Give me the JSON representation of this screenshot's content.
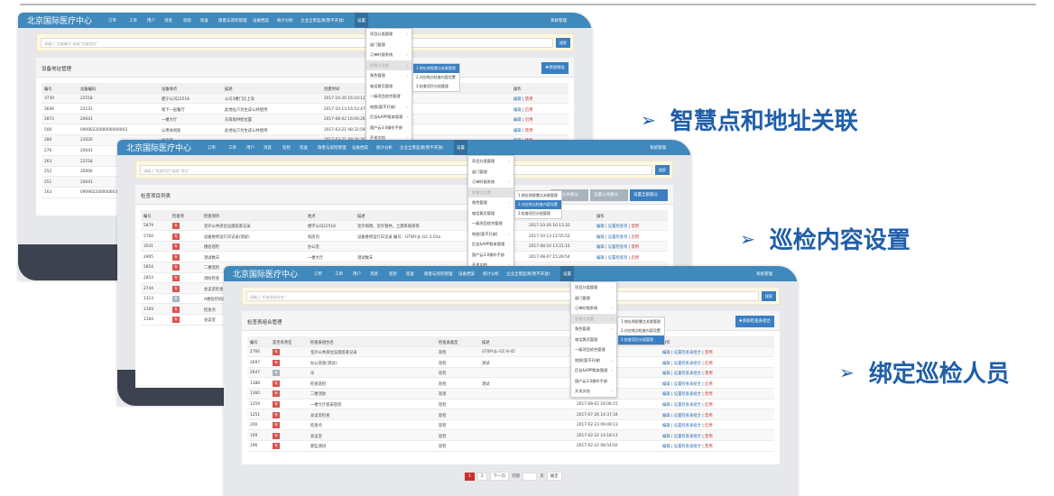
{
  "nav": {
    "brand": "北京国际医疗中心",
    "items": [
      "订单",
      "工单",
      "用户",
      "消息",
      "巡检",
      "巡查",
      "隐患与巡检管理",
      "设备档案",
      "统计分析",
      "企业全景监测(暂不开放)",
      "设置"
    ],
    "user": "系统管理"
  },
  "settings_menu": [
    "项目分类管理",
    "部门管理",
    "订单时限系统",
    "智慧点设置",
    "角色管理",
    "电话黄页管理",
    "一级项目综合管理",
    "地图(暂不开放)",
    "后台&APP版本管理",
    "国产云3.0操作手册",
    "开发文档"
  ],
  "settings_submenu": [
    "1.地址和智慧点关联管理",
    "2.对应地点检查内容设置",
    "3.检查项目分组管理"
  ],
  "shots": [
    {
      "search_placeholder": "请输入\"设备编号\"或者\"设备地点\"",
      "search_button": "搜索",
      "panel_title": "设备地址管理",
      "buttons": [
        "✚添加地址"
      ],
      "active_sub": 0,
      "columns": [
        "编号",
        "设备编码",
        "设备地点",
        "描述",
        "创建时间",
        "操作"
      ],
      "rows": [
        [
          "3730",
          "22518",
          "健宁公司22518",
          "公司3楼门诊上海",
          "2017-10-26 16:10:12",
          "编辑|禁用"
        ],
        [
          "3646",
          "23131",
          "地下一层餐厅",
          "此地址只为生成公共使用",
          "2017-10-13 16:53:47",
          "编辑|启用"
        ],
        [
          "2872",
          "20041",
          "一楼大厅",
          "东南角供给位置",
          "2017-08-02 16:00:26",
          "编辑|启用"
        ],
        [
          "500",
          "0909022000000000003",
          "公用休闲处",
          "此地址只为生成公共使用",
          "2017-03-21 08:31:59",
          "编辑|禁用"
        ],
        [
          "280",
          "23026",
          "会议室",
          "",
          "2017-03-21 08:26:30",
          "编辑|禁用"
        ],
        [
          "276",
          "20041",
          "",
          "",
          "",
          ""
        ],
        [
          "263",
          "22518",
          "",
          "",
          "",
          ""
        ],
        [
          "252",
          "20060",
          "",
          "",
          "",
          ""
        ],
        [
          "251",
          "20041",
          "",
          "",
          "",
          ""
        ],
        [
          "163",
          "0909022000000039",
          "",
          "",
          "",
          ""
        ]
      ]
    },
    {
      "search_placeholder": "请输入\"检查项目\"或者\"地点\"",
      "search_button": "搜索",
      "panel_title": "检查项目列表",
      "buttons": [
        "设置公共部分",
        "设置公共部分",
        "设置全部部分"
      ],
      "active_sub": 1,
      "columns": [
        "编号",
        "检查项",
        "检查项目",
        "地点",
        "描述",
        "创建时间",
        "操作"
      ],
      "rows": [
        [
          "5879",
          "red",
          "室外公共部位设施巡查记录",
          "楼宇公司22518",
          "室外照明，室外管井，土建系统部等",
          "2017-10-26 16:13:32",
          "编辑|设置检查项|禁用"
        ],
        [
          "5760",
          "red",
          "设备维修运行日记录(测试)",
          "机房内",
          "设备维修运行日记录 编号：GTWY-JL-GC 2.01a",
          "2017-10-13 12:55:52",
          "编辑|设置检查项|启用"
        ],
        [
          "3541",
          "red",
          "楼层巡检",
          "办公室",
          "",
          "2017-08-10 13:21:16",
          "编辑|设置检查项|禁用"
        ],
        [
          "2905",
          "red",
          "测试数天",
          "一楼大厅",
          "测试数天",
          "2017-08-07 15:29:54",
          "编辑|设置检查项|启用"
        ],
        [
          "2854",
          "red",
          "二楼巡检",
          "",
          "",
          "",
          ""
        ],
        [
          "2853",
          "red",
          "消防检查",
          "",
          "",
          "",
          ""
        ],
        [
          "2744",
          "red",
          "会议室检查",
          "",
          "",
          "",
          ""
        ],
        [
          "1313",
          "grey",
          "A楼监控机房",
          "",
          "",
          "",
          ""
        ],
        [
          "1169",
          "red",
          "检查点",
          "",
          "",
          "",
          ""
        ],
        [
          "1164",
          "red",
          "会议室",
          "",
          "",
          "",
          ""
        ]
      ]
    },
    {
      "search_placeholder": "请输入\"检查表组合名\"",
      "search_button": "搜索",
      "panel_title": "检查表组合管理",
      "buttons": [
        "✚添加检查表组合"
      ],
      "active_sub": 2,
      "columns": [
        "编号",
        "是否有责任",
        "检查表组合名",
        "检查表类型",
        "描述",
        "创建时间",
        "操作"
      ],
      "rows": [
        [
          "2766",
          "red",
          "室外公共部位设施巡查记录",
          "巡检",
          "GTWY-JL-GC-8-45",
          "",
          "编辑|设置检查表组合|禁用"
        ],
        [
          "2697",
          "red",
          "办公巡查(测试)",
          "巡检",
          "测试",
          "",
          "编辑|设置检查表组合|启用"
        ],
        [
          "2647",
          "grey",
          "乐",
          "巡检",
          "",
          "",
          "编辑|设置检查表组合|禁用"
        ],
        [
          "1388",
          "red",
          "检查巡检",
          "巡检",
          "测试",
          "",
          "编辑|设置检查表组合|启用"
        ],
        [
          "1360",
          "red",
          "二楼消防",
          "巡查",
          "",
          "",
          "编辑|设置检查表组合|禁用"
        ],
        [
          "1359",
          "red",
          "一楼大厅保安巡检",
          "巡检",
          "",
          "2017-08-02 16:06:15",
          "编辑|设置检查表组合|启用"
        ],
        [
          "1251",
          "red",
          "会议室检查",
          "巡检",
          "",
          "2017-07-26 14:37:34",
          "编辑|设置检查表组合|禁用"
        ],
        [
          "200",
          "red",
          "检查点",
          "巡检",
          "",
          "2017-02-23 09:49:13",
          "编辑|设置检查表组合|启用"
        ],
        [
          "199",
          "red",
          "会议室",
          "巡检",
          "",
          "2017-02-22 14:18:13",
          "编辑|设置检查表组合|禁用"
        ],
        [
          "196",
          "red",
          "那些测试",
          "巡检",
          "",
          "2017-02-22 08:54:02",
          "编辑|设置检查表组合|禁用"
        ]
      ],
      "pager": {
        "pages": [
          "1",
          "2"
        ],
        "next": "下一页",
        "goto": "到第",
        "page_unit": "页",
        "confirm": "确定"
      }
    }
  ],
  "tag_label": "有",
  "captions": [
    "智慧点和地址关联",
    "巡检内容设置",
    "绑定巡检人员"
  ],
  "colors": {
    "nav": "#3f89bd",
    "caption": "#1f5ea8",
    "danger": "#d9534f"
  }
}
